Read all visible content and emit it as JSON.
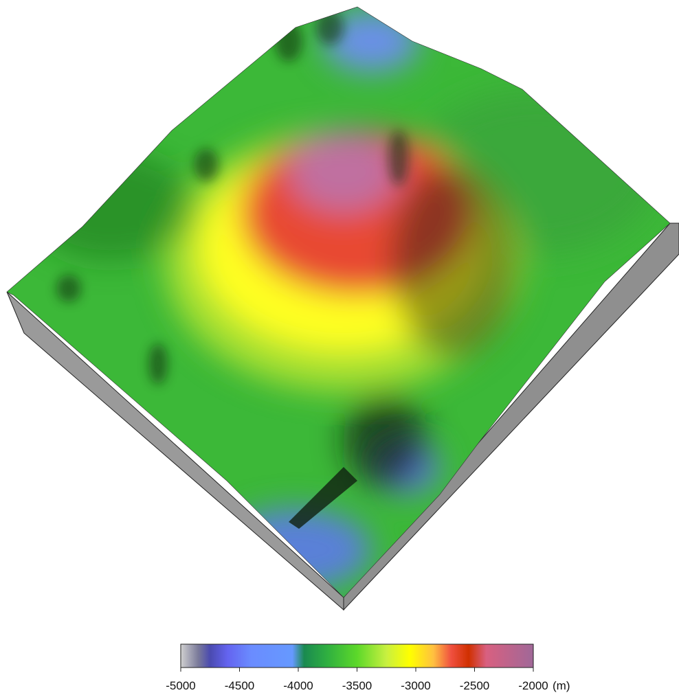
{
  "chart_data": {
    "type": "colorbar",
    "unit": "(m)",
    "xlim": [
      -5000,
      -2000
    ],
    "xticks": [
      -5000,
      -4500,
      -4000,
      -3500,
      -3000,
      -2500,
      -2000
    ],
    "stops": [
      {
        "value": -5000,
        "color": "#d0d0d0"
      },
      {
        "value": -4850,
        "color": "#7a7a9a"
      },
      {
        "value": -4750,
        "color": "#4a4ab0"
      },
      {
        "value": -4600,
        "color": "#6464f0"
      },
      {
        "value": -4400,
        "color": "#6a8cff"
      },
      {
        "value": -4050,
        "color": "#6699ff"
      },
      {
        "value": -3950,
        "color": "#1a8a50"
      },
      {
        "value": -3750,
        "color": "#30b040"
      },
      {
        "value": -3500,
        "color": "#5cd82a"
      },
      {
        "value": -3250,
        "color": "#c8f040"
      },
      {
        "value": -3050,
        "color": "#ffff00"
      },
      {
        "value": -2850,
        "color": "#ffc040"
      },
      {
        "value": -2700,
        "color": "#f05040"
      },
      {
        "value": -2550,
        "color": "#d03000"
      },
      {
        "value": -2400,
        "color": "#d86080"
      },
      {
        "value": -2000,
        "color": "#a06898"
      }
    ]
  }
}
